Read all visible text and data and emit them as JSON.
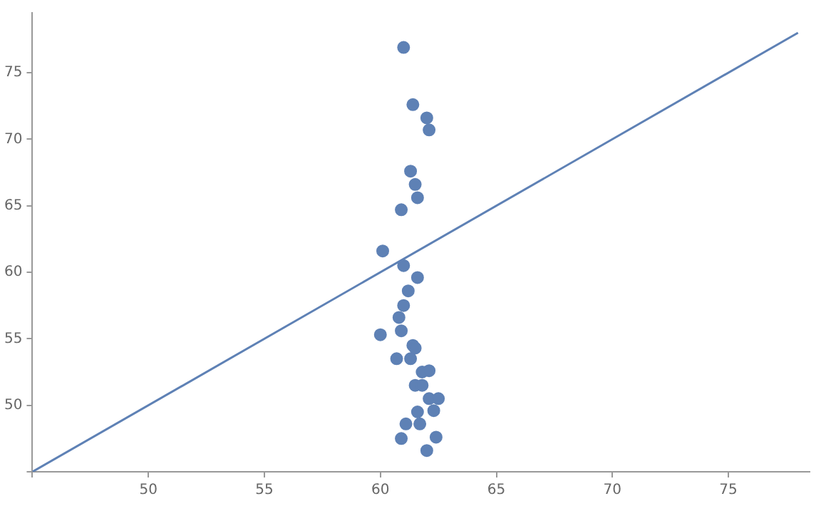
{
  "chart_data": {
    "type": "scatter",
    "xlim": [
      45,
      78.5
    ],
    "ylim": [
      45,
      79.5
    ],
    "xticks": [
      {
        "value": 45,
        "label": null
      },
      50,
      55,
      60,
      65,
      70,
      75
    ],
    "yticks": [
      {
        "value": 45,
        "label": null
      },
      50,
      55,
      60,
      65,
      70,
      75
    ],
    "grid": false,
    "legend": false,
    "marker": "circle",
    "series": [
      {
        "type": "line",
        "color": "#5e81b5",
        "marker": "none",
        "x": [
          45,
          78
        ],
        "values": [
          45,
          78
        ]
      },
      {
        "type": "scatter",
        "color": "#5e81b5",
        "x": [
          61.0,
          61.4,
          62.0,
          62.1,
          61.3,
          61.5,
          61.6,
          60.9,
          60.1,
          61.0,
          61.6,
          61.2,
          61.0,
          60.8,
          60.9,
          60.0,
          61.4,
          61.5,
          60.7,
          61.3,
          61.8,
          62.1,
          61.5,
          61.8,
          62.1,
          62.5,
          61.6,
          62.3,
          61.1,
          61.7,
          60.9,
          62.4,
          62.0
        ],
        "values": [
          76.9,
          72.6,
          71.6,
          70.7,
          67.6,
          66.6,
          65.6,
          64.7,
          61.6,
          60.5,
          59.6,
          58.6,
          57.5,
          56.6,
          55.6,
          55.3,
          54.5,
          54.3,
          53.5,
          53.5,
          52.5,
          52.6,
          51.5,
          51.5,
          50.5,
          50.5,
          49.5,
          49.6,
          48.6,
          48.6,
          47.5,
          47.6,
          46.6
        ]
      }
    ]
  }
}
